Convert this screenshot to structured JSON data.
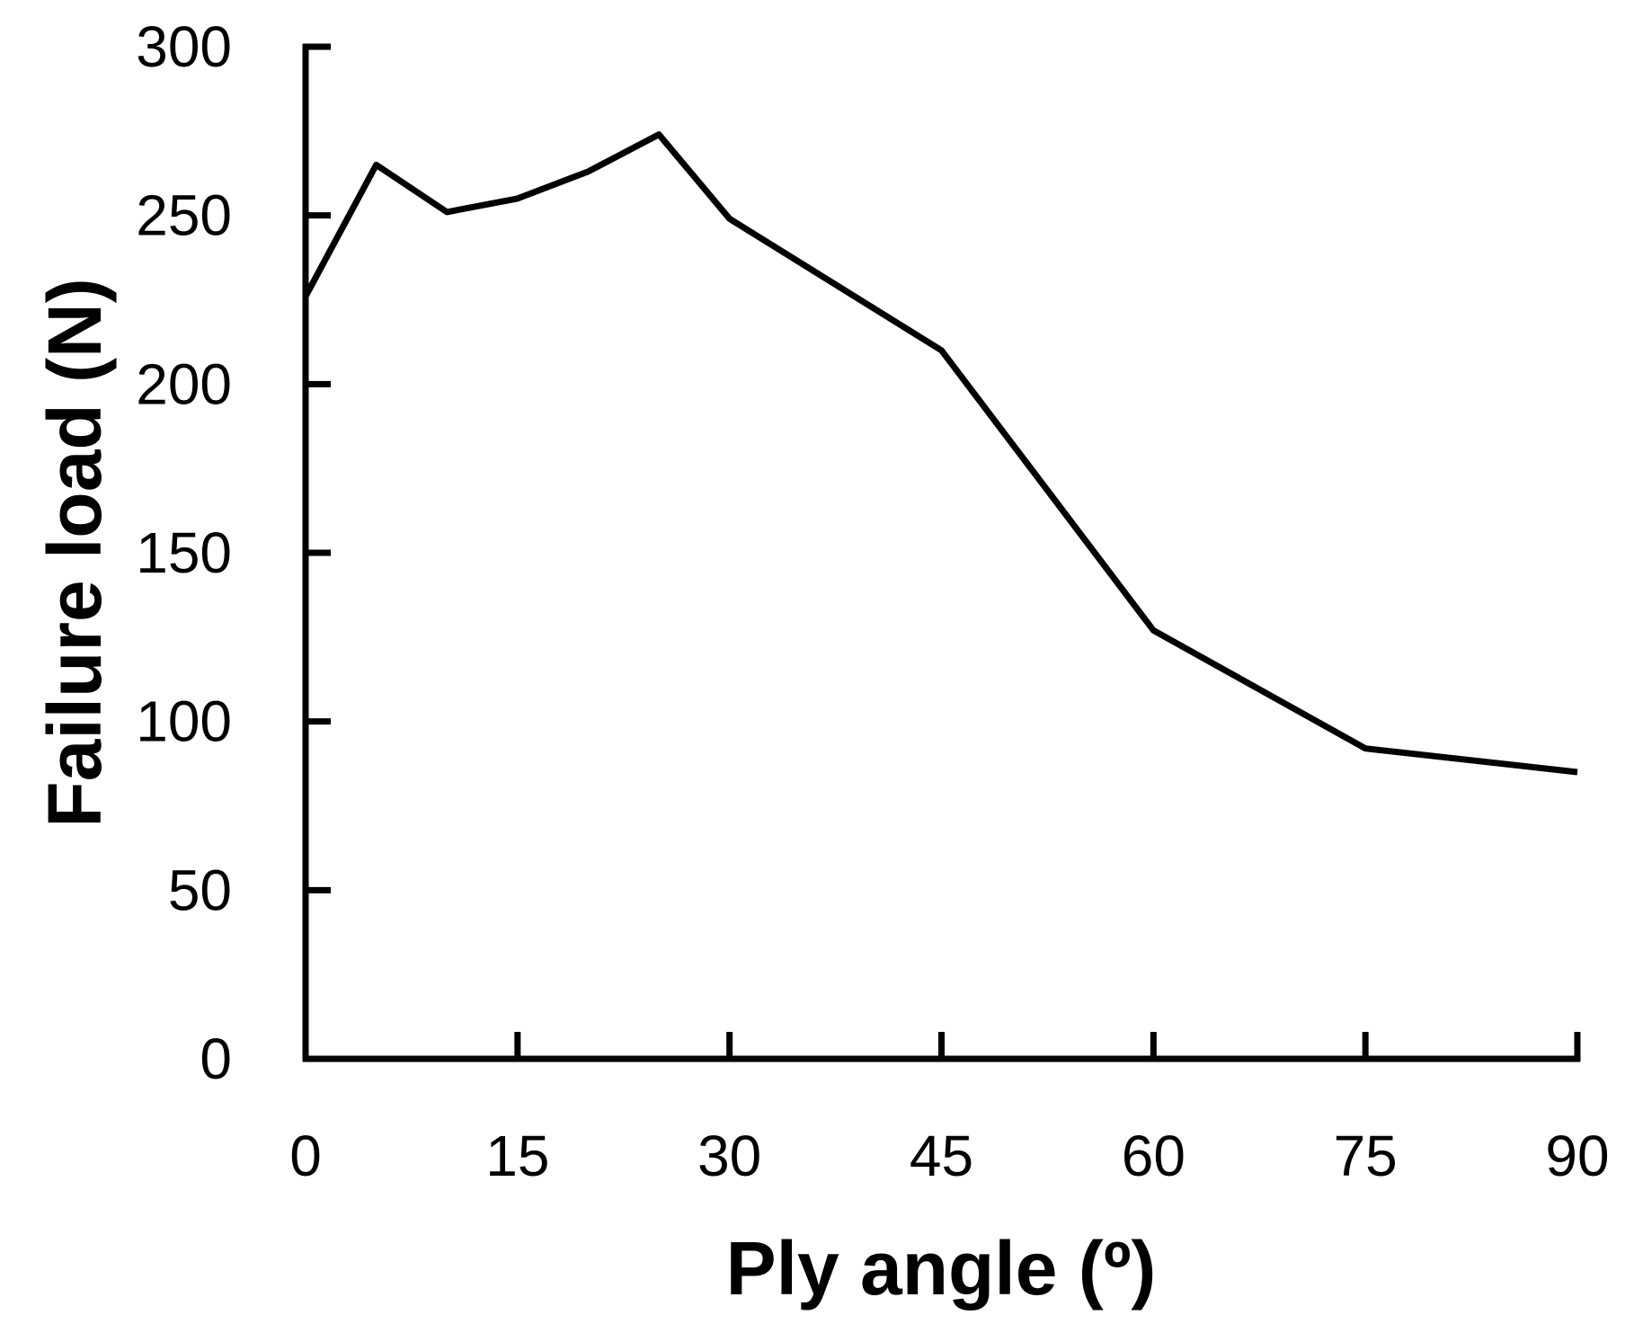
{
  "chart_data": {
    "type": "line",
    "title": "",
    "xlabel": "Ply angle (º)",
    "ylabel": "Failure load (N)",
    "xlim": [
      0,
      90
    ],
    "ylim": [
      0,
      300
    ],
    "x_ticks": [
      0,
      15,
      30,
      45,
      60,
      75,
      90
    ],
    "y_ticks": [
      0,
      50,
      100,
      150,
      200,
      250,
      300
    ],
    "grid": false,
    "legend": "none",
    "line_color": "#000000",
    "series": [
      {
        "x": [
          0,
          5,
          10,
          15,
          20,
          25,
          30,
          45,
          60,
          75,
          90
        ],
        "y": [
          226,
          265,
          251,
          255,
          263,
          274,
          249,
          210,
          127,
          92,
          85
        ]
      }
    ]
  }
}
